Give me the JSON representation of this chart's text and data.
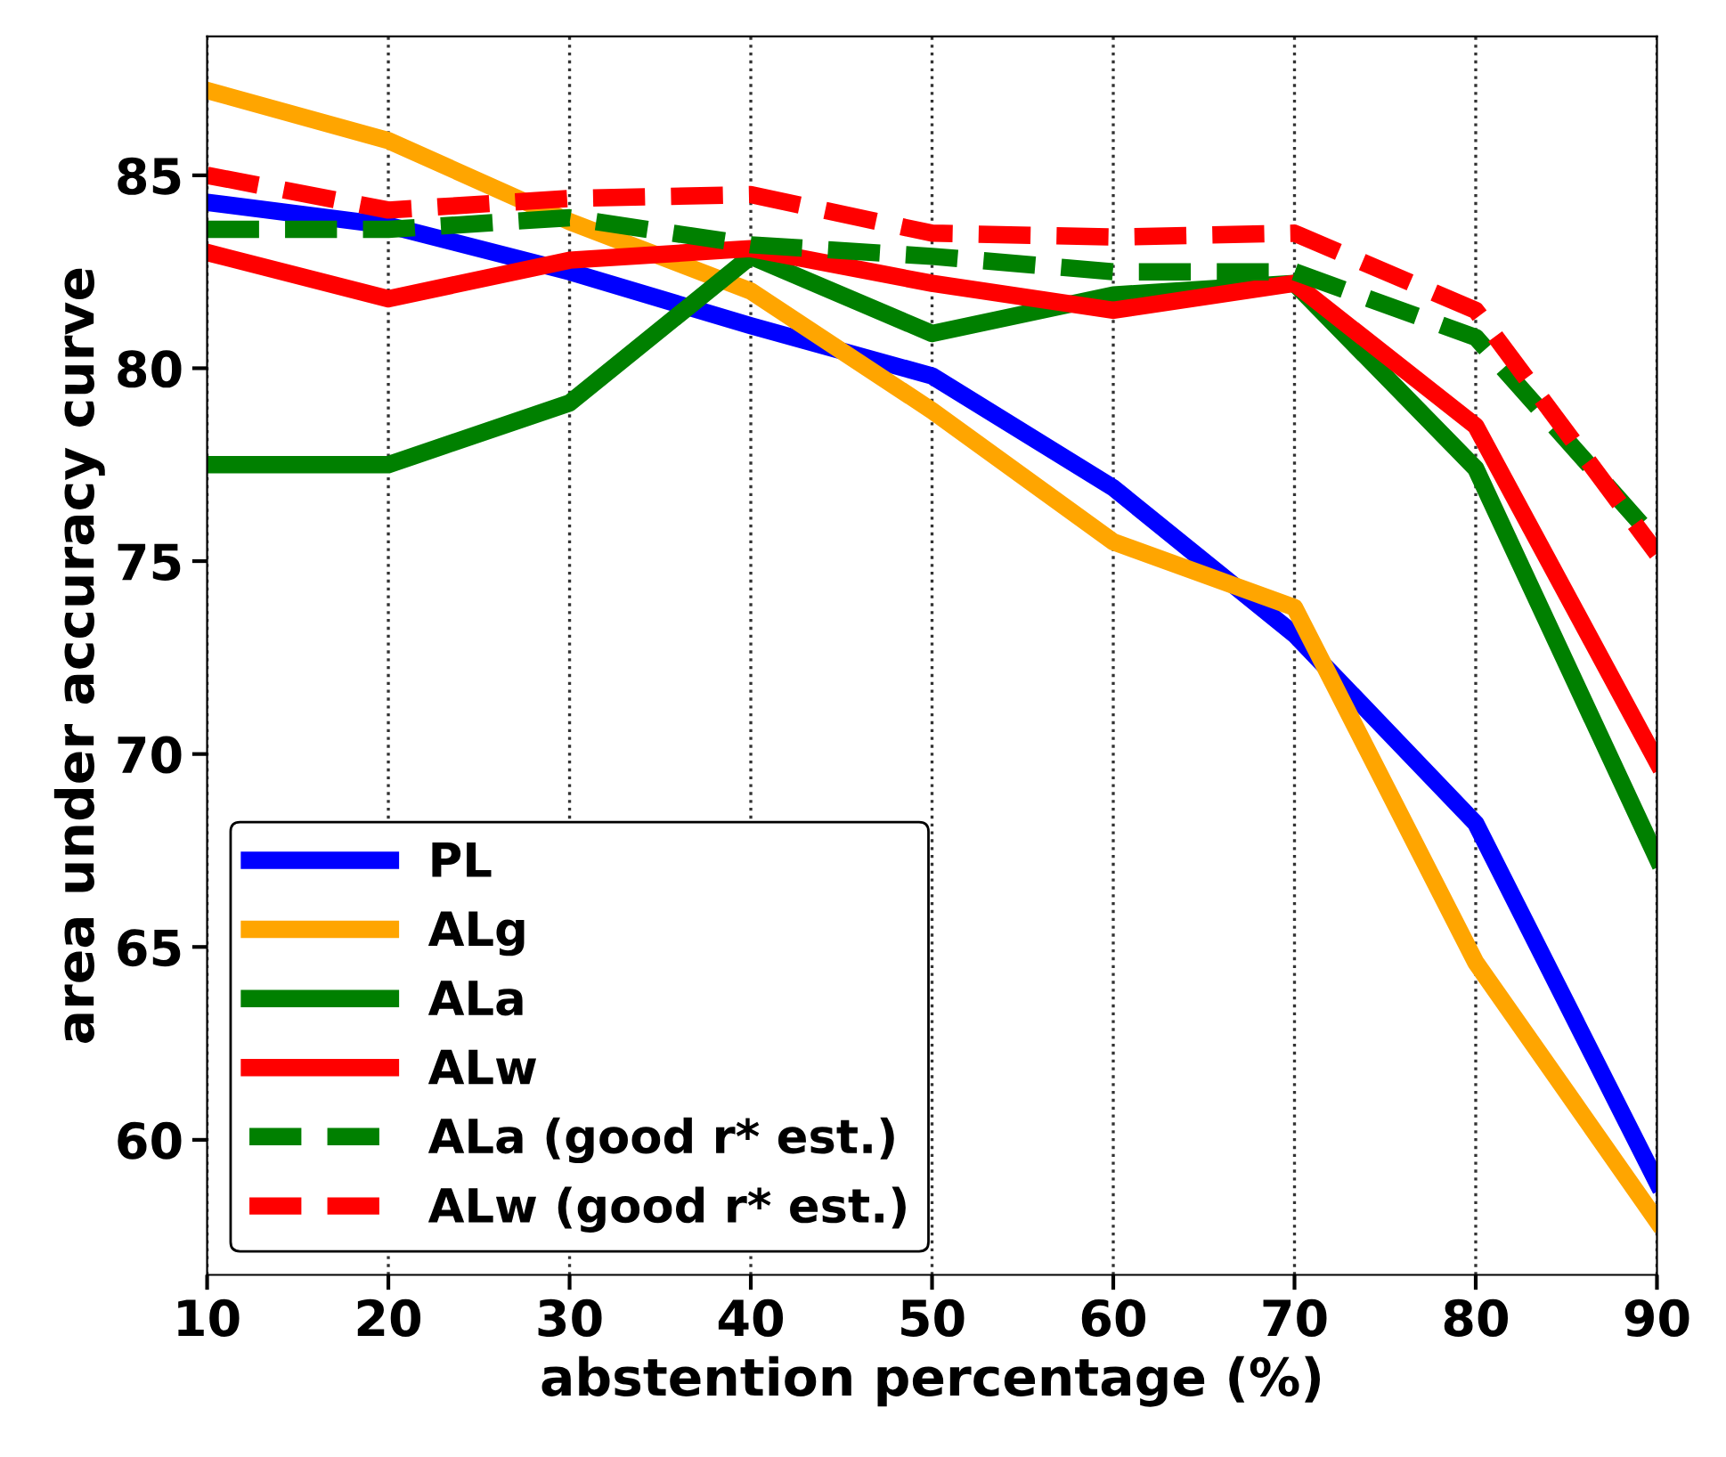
{
  "chart_data": {
    "type": "line",
    "xlabel": "abstention percentage (%)",
    "ylabel": "area under accuracy curve",
    "x": [
      10,
      20,
      30,
      40,
      50,
      60,
      70,
      80,
      90
    ],
    "xlim": [
      10,
      90
    ],
    "xticks": [
      10,
      20,
      30,
      40,
      50,
      60,
      70,
      80,
      90
    ],
    "ylim": [
      56.5,
      88.6
    ],
    "yticks": [
      60,
      65,
      70,
      75,
      80,
      85
    ],
    "grid": "x",
    "legend": "bottom left",
    "marker": "none",
    "series": [
      {
        "name": "PL",
        "color": "#0000ff",
        "line_style": "solid",
        "values": [
          84.3,
          83.7,
          82.5,
          81.1,
          79.8,
          76.9,
          73.1,
          68.2,
          58.9
        ]
      },
      {
        "name": "ALg",
        "color": "#ffa500",
        "line_style": "solid",
        "values": [
          87.2,
          85.9,
          83.8,
          82.0,
          78.9,
          75.5,
          73.8,
          64.6,
          57.9
        ]
      },
      {
        "name": "ALa",
        "color": "#008000",
        "line_style": "solid",
        "values": [
          77.5,
          77.5,
          79.1,
          82.9,
          80.9,
          81.9,
          82.2,
          77.4,
          67.3
        ]
      },
      {
        "name": "ALw",
        "color": "#ff0000",
        "line_style": "solid",
        "values": [
          83.0,
          81.8,
          82.8,
          83.1,
          82.2,
          81.5,
          82.2,
          78.5,
          69.8
        ]
      },
      {
        "name": "ALa (good r* est.)",
        "color": "#008000",
        "line_style": "dashed",
        "values": [
          83.6,
          83.6,
          83.9,
          83.2,
          82.9,
          82.5,
          82.5,
          80.8,
          75.5
        ]
      },
      {
        "name": "ALw (good r* est.)",
        "color": "#ff0000",
        "line_style": "dashed",
        "values": [
          85.0,
          84.1,
          84.4,
          84.5,
          83.5,
          83.4,
          83.5,
          81.5,
          75.2
        ]
      }
    ]
  }
}
